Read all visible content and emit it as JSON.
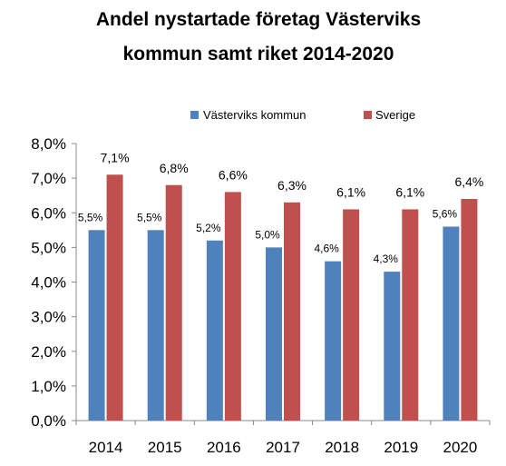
{
  "chart_data": {
    "type": "bar",
    "title_lines": [
      "Andel nystartade företag Västerviks",
      "kommun samt riket 2014-2020"
    ],
    "categories": [
      "2014",
      "2015",
      "2016",
      "2017",
      "2018",
      "2019",
      "2020"
    ],
    "series": [
      {
        "name": "Västerviks kommun",
        "color": "#4f81bd",
        "values": [
          5.5,
          5.5,
          5.2,
          5.0,
          4.6,
          4.3,
          5.6
        ],
        "labels": [
          "5,5%",
          "5,5%",
          "5,2%",
          "5,0%",
          "4,6%",
          "4,3%",
          "5,6%"
        ]
      },
      {
        "name": "Sverige",
        "color": "#c0504d",
        "values": [
          7.1,
          6.8,
          6.6,
          6.3,
          6.1,
          6.1,
          6.4
        ],
        "labels": [
          "7,1%",
          "6,8%",
          "6,6%",
          "6,3%",
          "6,1%",
          "6,1%",
          "6,4%"
        ]
      }
    ],
    "y_ticks": [
      "0,0%",
      "1,0%",
      "2,0%",
      "3,0%",
      "4,0%",
      "5,0%",
      "6,0%",
      "7,0%",
      "8,0%"
    ],
    "ylim": [
      0,
      8
    ],
    "ytick_step": 1,
    "grid": false,
    "legend_position": "top"
  }
}
